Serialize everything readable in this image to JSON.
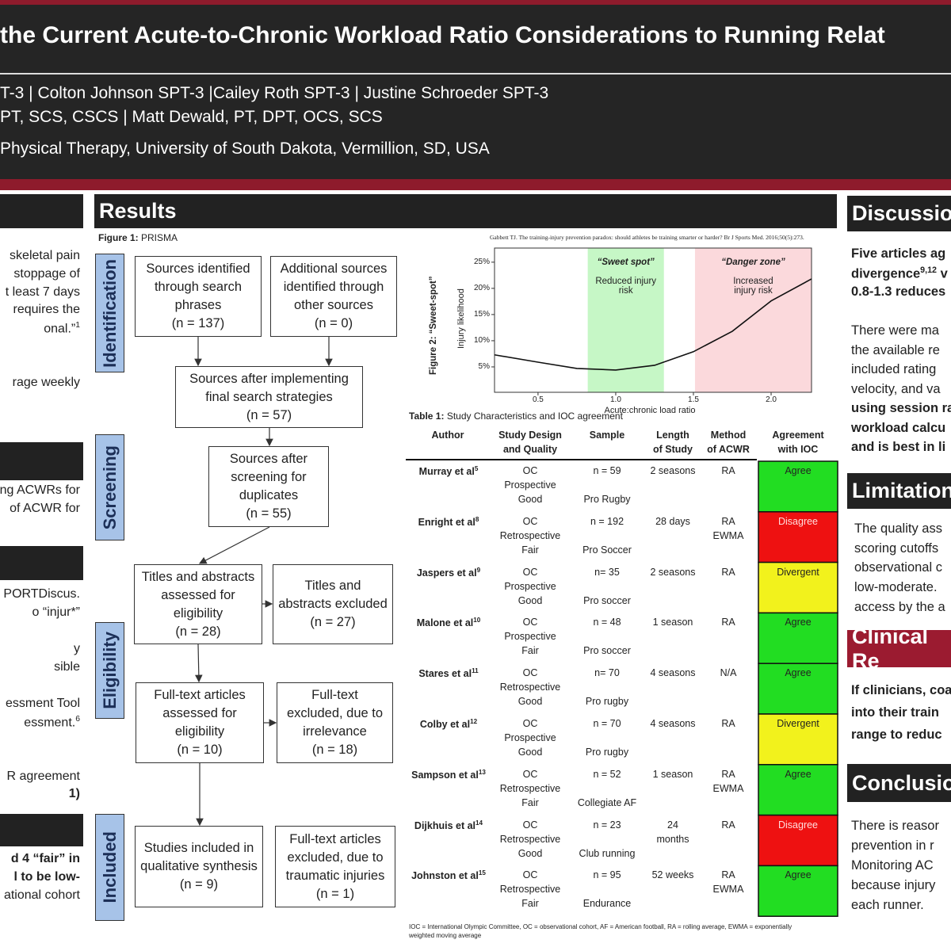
{
  "header": {
    "title": "the Current Acute-to-Chronic Workload Ratio Considerations to Running Relat",
    "authors": [
      "T-3 | Colton Johnson SPT-3 |Cailey Roth SPT-3 | Justine Schroeder SPT-3",
      "PT, SCS, CSCS | Matt Dewald, PT, DPT, OCS, SCS"
    ],
    "affiliation": "Physical Therapy, University of South Dakota, Vermillion, SD, USA"
  },
  "left_column": [
    {
      "text": "skeletal pain"
    },
    {
      "text": "stoppage of"
    },
    {
      "text": "t least 7 days"
    },
    {
      "text": "requires the"
    },
    {
      "text": "onal.”",
      "sup": "1"
    },
    {
      "text": "rage weekly"
    },
    {
      "text": "ng ACWRs for"
    },
    {
      "text": "of ACWR for"
    },
    {
      "text": "PORTDiscus."
    },
    {
      "text": "o “injur*”"
    },
    {
      "text": "y"
    },
    {
      "text": "sible"
    },
    {
      "text": "essment Tool"
    },
    {
      "text": "essment.",
      "sup": "6"
    },
    {
      "text": "R agreement"
    },
    {
      "text": "1)",
      "bold": true
    },
    {
      "text": "d 4 “fair” in",
      "bold": true
    },
    {
      "text": "l to be low-",
      "bold": true
    },
    {
      "text": "ational cohort"
    }
  ],
  "results": {
    "title": "Results",
    "figure1": {
      "label": "Figure 1:",
      "caption": "PRISMA",
      "stages": [
        "Identification",
        "Screening",
        "Eligibility",
        "Included"
      ],
      "boxes": [
        {
          "label": "Sources identified through search phrases",
          "n": "(n = 137)"
        },
        {
          "label": "Additional sources identified through other sources",
          "n": "(n = 0)"
        },
        {
          "label": "Sources after implementing final search strategies",
          "n": "(n = 57)"
        },
        {
          "label": "Sources after screening for duplicates",
          "n": "(n = 55)"
        },
        {
          "label": "Titles and abstracts assessed for eligibility",
          "n": "(n = 28)"
        },
        {
          "label": "Titles and abstracts excluded",
          "n": "(n = 27)"
        },
        {
          "label": "Full-text articles assessed for eligibility",
          "n": "(n = 10)"
        },
        {
          "label": "Full-text excluded, due to irrelevance",
          "n": "(n = 18)"
        },
        {
          "label": "Studies included in qualitative synthesis",
          "n": "(n = 9)"
        },
        {
          "label": "Full-text articles excluded, due to traumatic injuries",
          "n": "(n = 1)"
        }
      ]
    },
    "table1": {
      "label": "Table 1:",
      "caption": "Study Characteristics and IOC agreement",
      "columns": [
        [
          "Author"
        ],
        [
          "Study Design",
          "and Quality"
        ],
        [
          "Sample"
        ],
        [
          "Length",
          "of Study"
        ],
        [
          "Method",
          "of ACWR"
        ],
        [
          "Agreement",
          "with IOC"
        ]
      ],
      "rows": [
        {
          "author": "Murray et al",
          "ref": "5",
          "design": [
            "OC",
            "Prospective",
            "Good"
          ],
          "sample": [
            "n = 59",
            "Pro Rugby"
          ],
          "length": [
            "2 seasons"
          ],
          "method": [
            "RA"
          ],
          "agreement": "Agree",
          "color": "#22dd22"
        },
        {
          "author": "Enright et al",
          "ref": "8",
          "design": [
            "OC",
            "Retrospective",
            "Fair"
          ],
          "sample": [
            "n = 192",
            "Pro Soccer"
          ],
          "length": [
            "28 days"
          ],
          "method": [
            "RA",
            "EWMA"
          ],
          "agreement": "Disagree",
          "color": "#ee1111"
        },
        {
          "author": "Jaspers et al",
          "ref": "9",
          "design": [
            "OC",
            "Prospective",
            "Good"
          ],
          "sample": [
            "n= 35",
            "Pro  soccer"
          ],
          "length": [
            "2 seasons"
          ],
          "method": [
            "RA"
          ],
          "agreement": "Divergent",
          "color": "#f2f21c"
        },
        {
          "author": "Malone et al",
          "ref": "10",
          "design": [
            "OC",
            "Prospective",
            "Fair"
          ],
          "sample": [
            "n = 48",
            "Pro soccer"
          ],
          "length": [
            "1 season"
          ],
          "method": [
            "RA"
          ],
          "agreement": "Agree",
          "color": "#22dd22"
        },
        {
          "author": "Stares et al",
          "ref": "11",
          "design": [
            "OC",
            "Retrospective",
            "Good"
          ],
          "sample": [
            "n= 70",
            "Pro rugby"
          ],
          "length": [
            "4 seasons"
          ],
          "method": [
            "N/A"
          ],
          "agreement": "Agree",
          "color": "#22dd22"
        },
        {
          "author": "Colby et al",
          "ref": "12",
          "design": [
            "OC",
            "Prospective",
            "Good"
          ],
          "sample": [
            "n = 70",
            "Pro rugby"
          ],
          "length": [
            "4 seasons"
          ],
          "method": [
            "RA"
          ],
          "agreement": "Divergent",
          "color": "#f2f21c"
        },
        {
          "author": "Sampson et al",
          "ref": "13",
          "design": [
            "OC",
            "Retrospective",
            "Fair"
          ],
          "sample": [
            "n = 52",
            "Collegiate AF"
          ],
          "length": [
            "1 season"
          ],
          "method": [
            "RA",
            "EWMA"
          ],
          "agreement": "Agree",
          "color": "#22dd22"
        },
        {
          "author": "Dijkhuis et al",
          "ref": "14",
          "design": [
            "OC",
            "Retrospective",
            "Good"
          ],
          "sample": [
            "n = 23",
            "Club running"
          ],
          "length": [
            "24",
            "months"
          ],
          "method": [
            "RA"
          ],
          "agreement": "Disagree",
          "color": "#ee1111"
        },
        {
          "author": "Johnston et  al",
          "ref": "15",
          "design": [
            "OC",
            "Retrospective",
            "Fair"
          ],
          "sample": [
            "n = 95",
            "Endurance"
          ],
          "length": [
            "52 weeks"
          ],
          "method": [
            "RA",
            "EWMA"
          ],
          "agreement": "Agree",
          "color": "#22dd22"
        }
      ],
      "footnote": "IOC = International Olympic Committee, OC = observational cohort, AF = American football, RA = rolling average, EWMA = exponentially weighted moving average"
    }
  },
  "chart_data": {
    "type": "line",
    "title": "Figure 2: “Sweet-spot”",
    "source": "Gabbett TJ. The training-injury prevention paradox: should athletes be training smarter or harder? Br J Sports Med. 2016;50(5):273.",
    "x_label": "Acute:chronic load ratio",
    "y_label": "Injury likelihood",
    "x": [
      0.22,
      0.5,
      0.75,
      1.0,
      1.25,
      1.5,
      1.75,
      2.0,
      2.26
    ],
    "values": [
      7.3,
      5.9,
      4.7,
      4.4,
      5.3,
      7.9,
      11.8,
      17.6,
      21.8
    ],
    "color": "#111111",
    "xlim": [
      0.22,
      2.26
    ],
    "ylim": [
      0.15,
      27.7
    ],
    "xticks": [
      {
        "value": 0.5,
        "label": "0.5"
      },
      {
        "value": 1,
        "label": "1.0"
      },
      {
        "value": 1.5,
        "label": "1.5"
      },
      {
        "value": 2,
        "label": "2.0"
      }
    ],
    "yticks": [
      {
        "value": 5,
        "label": "5%"
      },
      {
        "value": 10,
        "label": "10%"
      },
      {
        "value": 15,
        "label": "15%"
      },
      {
        "value": 20,
        "label": "20%"
      },
      {
        "value": 25,
        "label": "25%"
      }
    ],
    "zones": [
      {
        "label": "“Sweet spot”",
        "text": "Reduced injury risk",
        "range": [
          0.82,
          1.31
        ],
        "color": "#c6f7c6"
      },
      {
        "label": "“Danger zone”",
        "text": "Increased injury risk",
        "range": [
          1.51,
          2.26
        ],
        "color": "#fbd9dc"
      }
    ]
  },
  "discussion": {
    "title": "Discussio",
    "lines": [
      {
        "text": "Five articles ag",
        "bold": true
      },
      {
        "text": "divergence",
        "sup": "9,12",
        "after": " v",
        "bold": true
      },
      {
        "text": "0.8-1.3 reduces",
        "bold": true
      },
      {
        "text": "There were ma"
      },
      {
        "text": "the available re"
      },
      {
        "text": "included rating"
      },
      {
        "text": "velocity, and va"
      },
      {
        "text": "using session ra",
        "bold": true
      },
      {
        "text": "workload calcu",
        "bold": true
      },
      {
        "text": "and is best in li",
        "bold": true
      }
    ]
  },
  "limitations": {
    "title": "Limitation",
    "lines": [
      {
        "text": "The quality ass"
      },
      {
        "text": "scoring cutoffs"
      },
      {
        "text": "observational c"
      },
      {
        "text": "low-moderate."
      },
      {
        "text": "access by the a"
      }
    ]
  },
  "clinical": {
    "title": "Clinical Re",
    "lines": [
      {
        "text": "If clinicians, coa",
        "bold": true
      },
      {
        "text": "into their train",
        "bold": true
      },
      {
        "text": "range to reduc",
        "bold": true
      }
    ]
  },
  "conclusion": {
    "title": "Conclusio",
    "lines": [
      {
        "text": "There is reasor"
      },
      {
        "text": "prevention in r"
      },
      {
        "text": "Monitoring AC"
      },
      {
        "text": "because injury"
      },
      {
        "text": "each runner."
      }
    ]
  }
}
